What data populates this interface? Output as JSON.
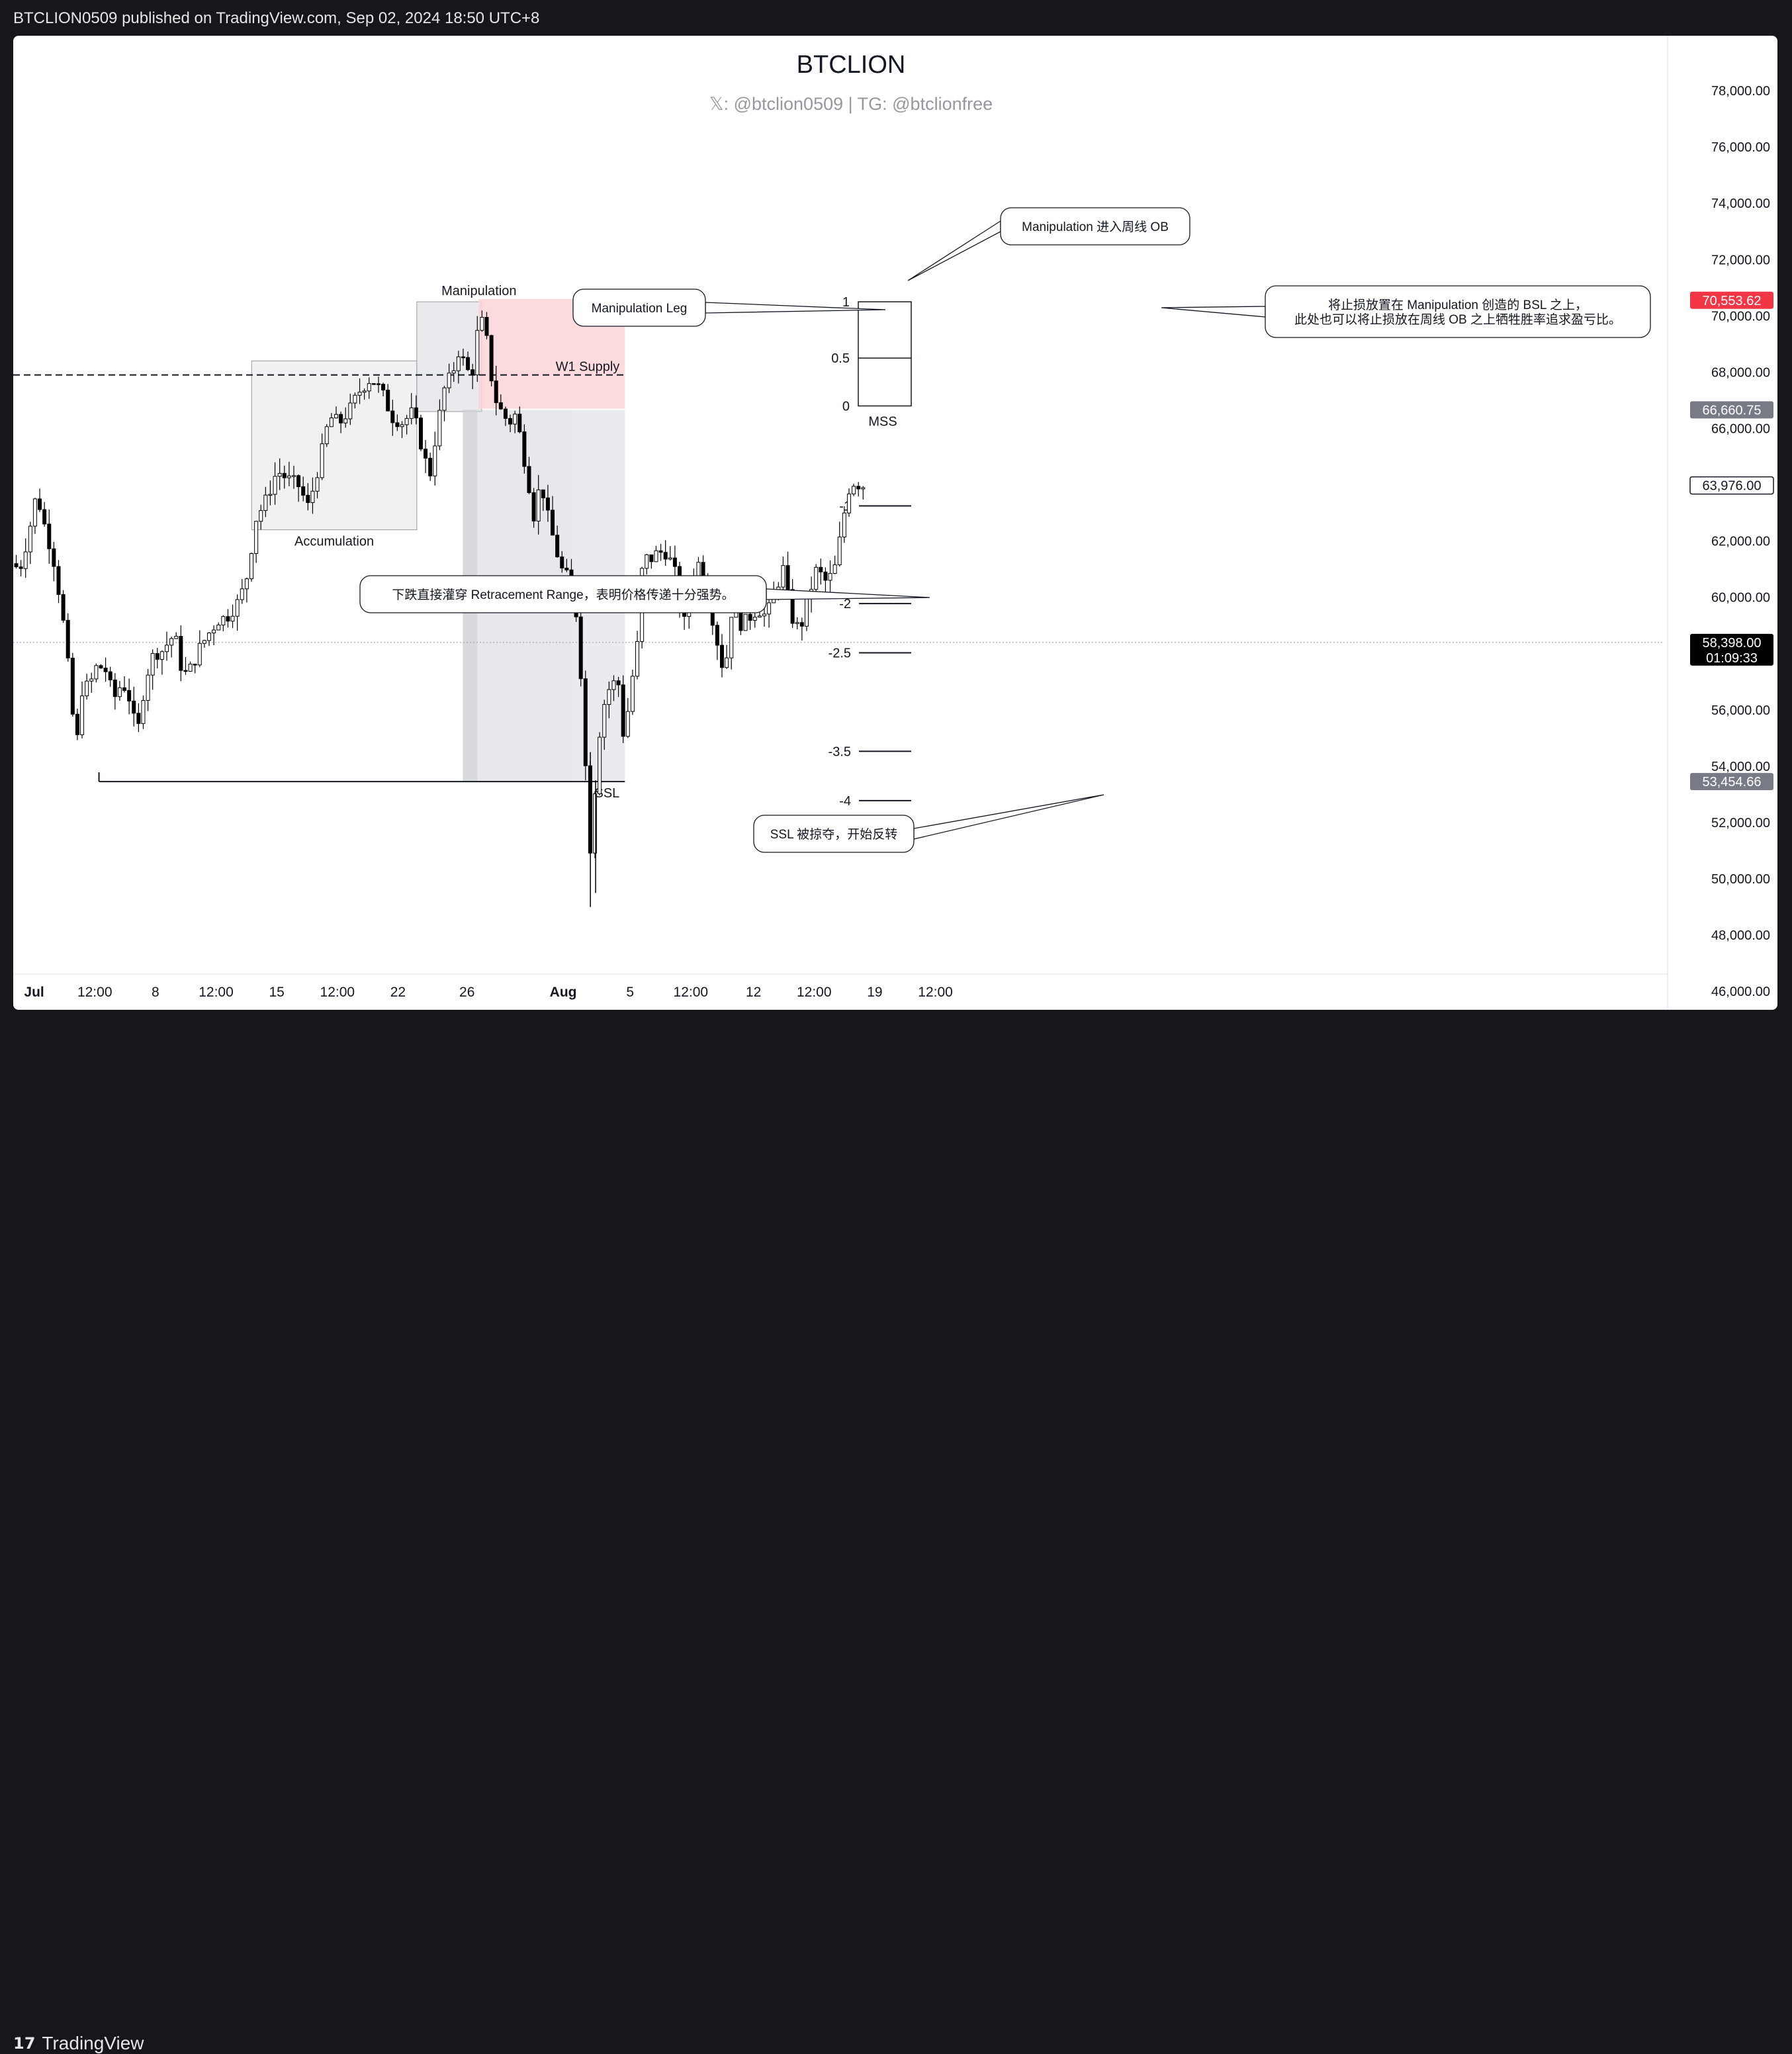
{
  "header": {
    "publish_info": "BTCLION0509 published on TradingView.com, Sep 02, 2024 18:50 UTC+8"
  },
  "footer": {
    "brand": "TradingView",
    "logo_icon": "tradingview-logo-icon"
  },
  "colors": {
    "up": "#ffffff",
    "down": "#000000",
    "supply_zone": "#fbd5d8",
    "label_red": "#f23645",
    "label_gray": "#787b86",
    "label_black": "#000000"
  },
  "chart_data": {
    "type": "candlestick",
    "title": "BTCLION",
    "subtitle": "𝕏: @btclion0509 | TG: @btclionfree",
    "x_ticks": [
      "Jul",
      "12:00",
      "8",
      "12:00",
      "15",
      "12:00",
      "22",
      "26",
      "Aug",
      "5",
      "12:00",
      "12",
      "12:00",
      "19",
      "12:00"
    ],
    "y_ticks": [
      "78,000.00",
      "76,000.00",
      "74,000.00",
      "72,000.00",
      "70,000.00",
      "68,000.00",
      "66,000.00",
      "62,000.00",
      "60,000.00",
      "56,000.00",
      "54,000.00",
      "52,000.00",
      "50,000.00",
      "48,000.00",
      "46,000.00"
    ],
    "ylim": [
      45300,
      79200
    ],
    "price_labels": [
      {
        "value": 70553.62,
        "text": "70,553.62",
        "style": "red"
      },
      {
        "value": 66660.75,
        "text": "66,660.75",
        "style": "gray"
      },
      {
        "value": 63976.0,
        "text": "63,976.00",
        "style": "outline"
      },
      {
        "value": 58398.0,
        "text": "58,398.00",
        "sub": "01:09:33",
        "style": "black"
      },
      {
        "value": 53454.66,
        "text": "53,454.66",
        "style": "gray"
      }
    ],
    "ohlc_waypoints": [
      [
        0,
        61200
      ],
      [
        0.04,
        61000
      ],
      [
        0.08,
        62200
      ],
      [
        0.12,
        63700
      ],
      [
        0.16,
        62500
      ],
      [
        0.2,
        61400
      ],
      [
        0.235,
        59800
      ],
      [
        0.26,
        58400
      ],
      [
        0.29,
        56000
      ],
      [
        0.31,
        54600
      ],
      [
        0.34,
        56900
      ],
      [
        0.37,
        56800
      ],
      [
        0.41,
        57600
      ],
      [
        0.45,
        57400
      ],
      [
        0.49,
        56400
      ],
      [
        0.53,
        57000
      ],
      [
        0.57,
        56300
      ],
      [
        0.6,
        55000
      ],
      [
        0.64,
        57100
      ],
      [
        0.68,
        58000
      ],
      [
        0.72,
        58100
      ],
      [
        0.78,
        58700
      ],
      [
        0.82,
        57200
      ],
      [
        0.86,
        57500
      ],
      [
        0.9,
        58200
      ],
      [
        0.95,
        58800
      ],
      [
        0.99,
        59200
      ],
      [
        1.03,
        59300
      ],
      [
        1.08,
        59800
      ],
      [
        1.12,
        60500
      ],
      [
        1.17,
        62800
      ],
      [
        1.22,
        63500
      ],
      [
        1.27,
        64500
      ],
      [
        1.32,
        64200
      ],
      [
        1.37,
        64000
      ],
      [
        1.42,
        63200
      ],
      [
        1.47,
        64700
      ],
      [
        1.52,
        66400
      ],
      [
        1.57,
        66200
      ],
      [
        1.62,
        66700
      ],
      [
        1.67,
        67400
      ],
      [
        1.72,
        67800
      ],
      [
        1.77,
        67300
      ],
      [
        1.82,
        66400
      ],
      [
        1.87,
        66200
      ],
      [
        1.92,
        66600
      ],
      [
        1.97,
        65100
      ],
      [
        2.0,
        64300
      ],
      [
        2.03,
        65800
      ],
      [
        2.07,
        67400
      ],
      [
        2.11,
        68000
      ],
      [
        2.14,
        68800
      ],
      [
        2.17,
        68200
      ],
      [
        2.2,
        67800
      ],
      [
        2.23,
        69500
      ],
      [
        2.26,
        69900
      ],
      [
        2.29,
        68000
      ],
      [
        2.32,
        66900
      ],
      [
        2.35,
        66500
      ],
      [
        2.38,
        66200
      ],
      [
        2.41,
        66500
      ],
      [
        2.43,
        65800
      ],
      [
        2.47,
        64200
      ],
      [
        2.5,
        62800
      ],
      [
        2.53,
        64200
      ],
      [
        2.56,
        63000
      ],
      [
        2.6,
        61800
      ],
      [
        2.63,
        61000
      ],
      [
        2.66,
        60700
      ],
      [
        2.69,
        60300
      ],
      [
        2.72,
        57700
      ],
      [
        2.745,
        54000
      ],
      [
        2.77,
        50800
      ],
      [
        2.79,
        53200
      ],
      [
        2.82,
        55900
      ],
      [
        2.86,
        56800
      ],
      [
        2.9,
        57100
      ],
      [
        2.93,
        54800
      ],
      [
        2.96,
        56800
      ],
      [
        2.99,
        58000
      ],
      [
        3.02,
        61500
      ],
      [
        3.05,
        61300
      ],
      [
        3.09,
        61600
      ],
      [
        3.13,
        61600
      ],
      [
        3.17,
        61000
      ],
      [
        3.21,
        58800
      ],
      [
        3.25,
        60500
      ],
      [
        3.29,
        61300
      ],
      [
        3.33,
        60100
      ],
      [
        3.37,
        58600
      ],
      [
        3.41,
        57200
      ],
      [
        3.45,
        60000
      ],
      [
        3.49,
        59000
      ],
      [
        3.53,
        59300
      ],
      [
        3.57,
        59600
      ],
      [
        3.61,
        59300
      ],
      [
        3.65,
        60200
      ],
      [
        3.69,
        61000
      ],
      [
        3.73,
        59300
      ],
      [
        3.77,
        58800
      ],
      [
        3.81,
        60000
      ],
      [
        3.85,
        61000
      ],
      [
        3.9,
        60500
      ],
      [
        3.94,
        61100
      ],
      [
        3.98,
        62900
      ],
      [
        4.0,
        63800
      ],
      [
        4.03,
        64100
      ],
      [
        4.06,
        63976
      ]
    ],
    "levels": [
      {
        "label": "1",
        "value": 70500
      },
      {
        "label": "0.5",
        "value": 68500
      },
      {
        "label": "0",
        "value": 66800
      },
      {
        "label": "-1",
        "value": 63250
      },
      {
        "label": "-2",
        "value": 59780
      },
      {
        "label": "-2.5",
        "value": 58030
      },
      {
        "label": "-3.5",
        "value": 54530
      },
      {
        "label": "-4",
        "value": 52780
      }
    ],
    "dashed_line": 67900,
    "zones": [
      {
        "name": "accumulation-box",
        "label": "Accumulation",
        "x0": 1.14,
        "x1": 1.93,
        "y0": 62400,
        "y1": 68400
      },
      {
        "name": "manipulation-box",
        "label": "Manipulation",
        "x0": 1.93,
        "x1": 2.24,
        "y0": 66600,
        "y1": 70500
      },
      {
        "name": "w1-supply-zone",
        "label": "W1 Supply",
        "x0": 2.225,
        "x1": 2.925,
        "y0": 66700,
        "y1": 70600
      },
      {
        "name": "retracement-zone",
        "label": "",
        "x0": 2.15,
        "x1": 2.925,
        "y0": 53454,
        "y1": 66660
      }
    ],
    "ssl_line": {
      "label": "SSL",
      "value": 53454.66,
      "x0": 0.41,
      "x1": 2.925
    },
    "annotations": [
      {
        "name": "callout-manipulation-leg",
        "text": "Manipulation Leg"
      },
      {
        "name": "callout-weekly-ob",
        "text": "Manipulation 进入周线 OB"
      },
      {
        "name": "callout-stop-placement",
        "lines": [
          "将止损放置在 Manipulation 创造的 BSL 之上，",
          "此处也可以将止损放在周线 OB 之上牺牲胜率追求盈亏比。"
        ]
      },
      {
        "name": "callout-retracement",
        "text": "下跌直接灌穿 Retracement Range，表明价格传递十分强势。"
      },
      {
        "name": "callout-ssl-swept",
        "text": "SSL 被掠夺，开始反转"
      },
      {
        "name": "label-mss",
        "text": "MSS"
      }
    ]
  }
}
